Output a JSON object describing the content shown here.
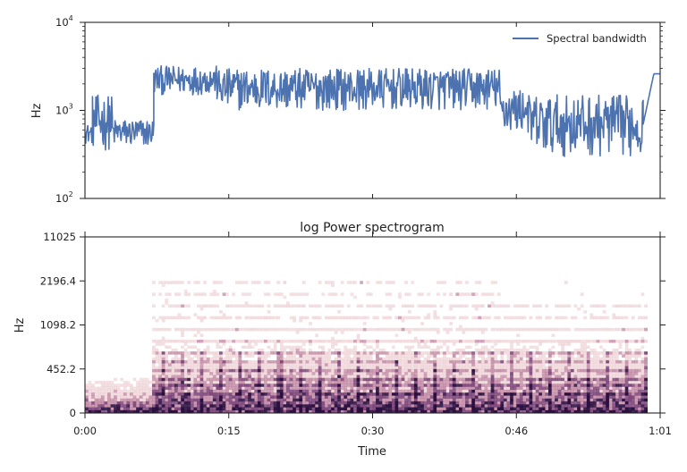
{
  "chart_data": [
    {
      "type": "line",
      "panel": "top",
      "ylabel": "Hz",
      "yscale": "log",
      "ylim": [
        100,
        10000
      ],
      "xlim": [
        0,
        61
      ],
      "yticks": [
        {
          "value": 100,
          "base": "10",
          "exp": "2"
        },
        {
          "value": 1000,
          "base": "10",
          "exp": "3"
        },
        {
          "value": 10000,
          "base": "10",
          "exp": "4"
        }
      ],
      "legend": {
        "position": "top-right"
      },
      "series": [
        {
          "name": "Spectral bandwidth",
          "color": "#4c72b0",
          "segments": [
            {
              "x": [
                0,
                0.8
              ],
              "low": 420,
              "high": 700
            },
            {
              "x": [
                0.8,
                2.9
              ],
              "low": 350,
              "high": 1500
            },
            {
              "x": [
                2.9,
                7.3
              ],
              "low": 380,
              "high": 800
            },
            {
              "x": [
                7.3,
                14
              ],
              "low": 1500,
              "high": 3200
            },
            {
              "x": [
                14,
                44
              ],
              "low": 1000,
              "high": 3000
            },
            {
              "x": [
                44,
                47
              ],
              "low": 550,
              "high": 1800
            },
            {
              "x": [
                47,
                59.2
              ],
              "low": 300,
              "high": 1500
            },
            {
              "x": [
                59.2,
                61
              ],
              "low": 700,
              "high": 2600
            }
          ]
        }
      ]
    },
    {
      "type": "heatmap",
      "panel": "bottom",
      "title": "log Power spectrogram",
      "xlabel": "Time",
      "ylabel": "Hz",
      "xlim": [
        0,
        61
      ],
      "yticks": [
        "0",
        "452.2",
        "1098.2",
        "2196.4",
        "11025"
      ],
      "xticks": [
        {
          "value": 0,
          "label": "0:00"
        },
        {
          "value": 15.25,
          "label": "0:15"
        },
        {
          "value": 30.5,
          "label": "0:30"
        },
        {
          "value": 45.75,
          "label": "0:46"
        },
        {
          "value": 61,
          "label": "1:01"
        }
      ],
      "colormap": [
        "#ffffff",
        "#e8c2c7",
        "#b46e8f",
        "#6d2f6a",
        "#2a0f3f"
      ]
    }
  ]
}
